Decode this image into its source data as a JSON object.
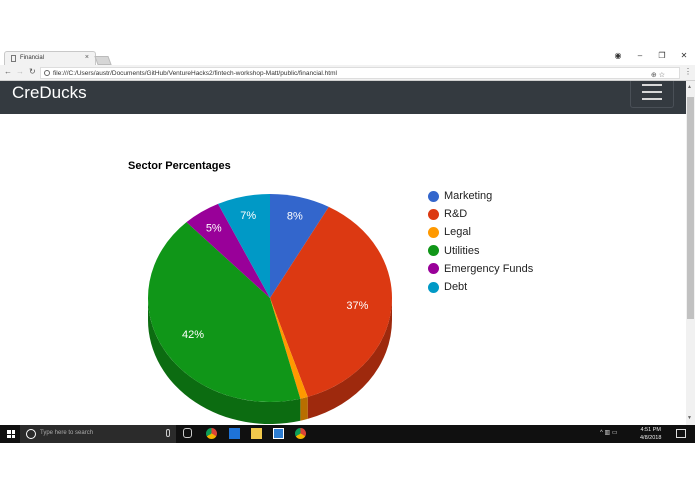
{
  "browser": {
    "tab_title": "Financial",
    "tab_close": "×",
    "url": "file:///C:/Users/austr/Documents/GitHub/VentureHacks2/fintech-workshop-Matt/public/financial.html",
    "window_controls": {
      "account": "◉",
      "minimize": "–",
      "restore": "❐",
      "close": "✕"
    },
    "nav": {
      "back": "←",
      "forward": "→",
      "reload": "↻"
    },
    "omni_icons": "⊕  ☆",
    "menu": "⋮"
  },
  "navbar": {
    "brand": "CreDucks"
  },
  "chart_data": {
    "type": "pie",
    "title": "Sector Percentages",
    "is3D": true,
    "categories": [
      "Marketing",
      "R&D",
      "Legal",
      "Utilities",
      "Emergency Funds",
      "Debt"
    ],
    "values": [
      8,
      37,
      1,
      42,
      5,
      7
    ],
    "labels": [
      "8%",
      "37%",
      "",
      "42%",
      "5%",
      "7%"
    ],
    "colors": [
      "#3366cc",
      "#dc3912",
      "#ff9900",
      "#109618",
      "#990099",
      "#0099c6"
    ],
    "legend_position": "right"
  },
  "legend": [
    {
      "label": "Marketing",
      "color": "#3366cc"
    },
    {
      "label": "R&D",
      "color": "#dc3912"
    },
    {
      "label": "Legal",
      "color": "#ff9900"
    },
    {
      "label": "Utilities",
      "color": "#109618"
    },
    {
      "label": "Emergency Funds",
      "color": "#990099"
    },
    {
      "label": "Debt",
      "color": "#0099c6"
    }
  ],
  "taskbar": {
    "search_placeholder": "Type here to search",
    "time": "4:51 PM",
    "date": "4/8/2018",
    "tray": "^  ▥  ▭"
  }
}
